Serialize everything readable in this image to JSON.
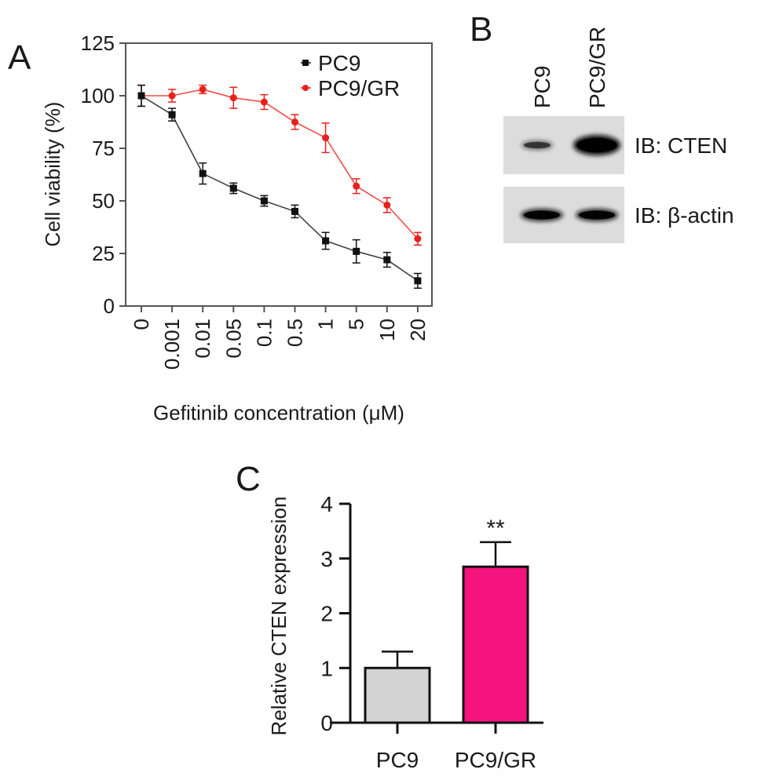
{
  "panels": {
    "a": "A",
    "b": "B",
    "c": "C"
  },
  "chart_data": [
    {
      "type": "line",
      "panel": "A",
      "xlabel": "Gefitinib concentration (μM)",
      "ylabel": "Cell viability (%)",
      "categories": [
        "0",
        "0.001",
        "0.01",
        "0.05",
        "0.1",
        "0.5",
        "1",
        "5",
        "10",
        "20"
      ],
      "yticks": [
        "0",
        "25",
        "50",
        "75",
        "100",
        "125"
      ],
      "ylim": [
        0,
        125
      ],
      "legend": "top-right",
      "series": [
        {
          "name": "PC9",
          "color": "#111111",
          "marker": "square",
          "values": [
            100,
            91,
            63,
            56,
            50,
            45,
            31,
            26,
            22,
            12
          ],
          "errors": [
            5,
            3,
            5,
            2.5,
            2.5,
            3,
            4,
            5.5,
            3.5,
            3.5
          ]
        },
        {
          "name": "PC9/GR",
          "color": "#e8201c",
          "marker": "circle",
          "values": [
            100,
            100,
            103,
            99,
            97,
            87.5,
            80,
            57,
            48,
            32
          ],
          "errors": [
            5,
            3,
            2,
            5,
            3.5,
            3.5,
            7,
            3.5,
            3.5,
            3
          ]
        }
      ]
    },
    {
      "type": "bar",
      "panel": "C",
      "ylabel": "Relative CTEN expression",
      "categories": [
        "PC9",
        "PC9/GR"
      ],
      "values": [
        1.0,
        2.85
      ],
      "errors": [
        0.3,
        0.45
      ],
      "colors": [
        "#d3d3d3",
        "#f5137e"
      ],
      "yticks": [
        "0",
        "1",
        "2",
        "3",
        "4"
      ],
      "ylim": [
        0,
        4
      ],
      "annotations": [
        "",
        "**"
      ]
    }
  ],
  "blot": {
    "panel": "B",
    "lanes": [
      "PC9",
      "PC9/GR"
    ],
    "rows": [
      {
        "label": "IB: CTEN",
        "intensity": [
          0.55,
          1.0
        ]
      },
      {
        "label": "IB: β-actin",
        "intensity": [
          0.9,
          0.9
        ]
      }
    ]
  }
}
